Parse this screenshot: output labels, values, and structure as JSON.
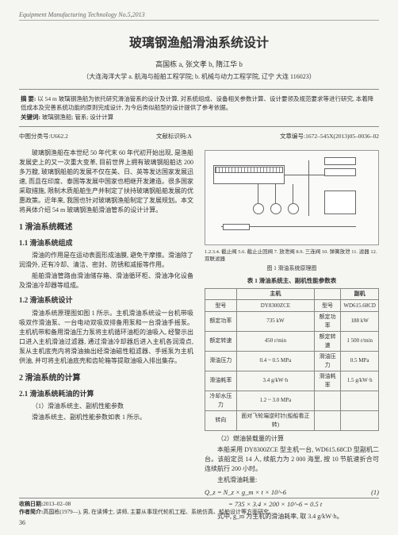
{
  "journal_header": "Equipment  Manufacturing Technology No.5,2013",
  "title": "玻璃钢渔船滑油系统设计",
  "authors": "高国栋 a, 张文孝 b, 隋江华 b",
  "affiliation": "（大连海洋大学  a. 航海与船舶工程学院;  b. 机械与动力工程学院, 辽宁  大连  116023）",
  "abstract_label": "摘 要:",
  "abstract_text": "以 54 m 玻璃钢渔船为依托研究滑油管系的设计及计算, 对系统组成、设备相关参数计算、设计要领及规范要求等进行研究, 本着降低成本及完善系统功能的原则完成设计, 为今后类似船型的设计提供了参考依据。",
  "keywords_label": "关键词:",
  "keywords_text": "玻璃钢渔船; 管系; 设计计算",
  "clc_label": "中图分类号:",
  "clc_value": "U662.2",
  "doc_code_label": "文献标识码:",
  "doc_code_value": "A",
  "article_id_label": "文章编号:",
  "article_id_value": "1672–545X(2013)05–0036–02",
  "intro_p1": "玻璃钢渔船在本世纪 50 年代末 60 年代初开始出现, 是渔船发展史上的又一次重大变革, 目前世界上拥有玻璃钢船舶达 200 多万艘, 玻璃钢船舶的发展不仅在美、日、英等发达国家发展迅速, 而且在印度、泰国等发展中国家也相继开发建造。很多国家采取措施, 限制木质船舶生产并制定了扶持玻璃钢船舶发展的优惠政策。近年来, 我国也针对玻璃钢渔船制定了发展规划。本文将具体介绍 54 m 玻璃钢渔船滑油管系的设计计算。",
  "s1": "1  滑油系统概述",
  "s11": "1.1  滑油系统组成",
  "p11a": "滑油的作用是在运动表面形成油膜, 避免干摩擦。滑油除了润滑外, 还有冷却、清洁、密封、防锈和减振等作用。",
  "p11b": "船舶滑油管路由滑油储存箱、滑油循环柜、滑油净化设备及滑油冷却器等组成。",
  "s12": "1.2  滑油系统设计",
  "p12": "滑油系统原理图如图 1 所示。主机滑油系统设一台机带吸吸双作滑油泵、一台电动双吸双排备用泵和一台滑油手摇泵。主机机带和备用滑油压力泵将主机循环油柜的油吸入, 经警示出口进入主机滑油过滤器, 通过滑油冷却器后进入主机各润滑点, 泵从主机底壳内将滑油抽出经滑油磁性粗滤器、手摇泵为主机供油, 并可将主机油底壳和齿轮箱等提取油吸入排出集存。",
  "s2": "2  滑油系统的计算",
  "s21": "2.1  滑油系统耗油的计算",
  "p21a": "（1）滑油系统主、副机性能参数",
  "p21b": "滑油系统主、副机性能参数如表 1 所示。",
  "fig_legend": "1.2.3.4. 截止阀  5.6. 截止止回阀  7. 放泄阀  8.9. 三连阀  10. 弹簧放泄  11. 滤器  12. 双联滤器",
  "fig_caption": "图 1  滑油系统原理图",
  "tbl_title": "表 1  滑油系统主、副机性能参数表",
  "table": {
    "columns": [
      "",
      "主机",
      "副机"
    ],
    "rows": [
      [
        "型号",
        "DY8300ZCE",
        "型号",
        "WD615.68CD"
      ],
      [
        "额定功率",
        "735 kW",
        "额定功率",
        "188 kW"
      ],
      [
        "额定转速",
        "450 r/min",
        "额定转速",
        "1 500 r/min"
      ],
      [
        "滑油压力",
        "0.4 ~ 0.5 MPa",
        "滑油压力",
        "0.5 MPa"
      ],
      [
        "滑油耗率",
        "3.4 g/kW·h",
        "滑油耗率",
        "1.5 g/kW·h"
      ],
      [
        "冷却水压力",
        "1.2 ~ 3.0 MPa",
        "",
        ""
      ],
      [
        "转向",
        "面对飞轮端逆时针(船船看正转)",
        "",
        ""
      ]
    ]
  },
  "p22a": "（2）燃油装载量的计算",
  "p22b": "本船采用 DY8300ZCE 型主机一台, WD615.68CD 型副机二台。该船定员 14 人, 续航力为 2 000 海里, 按 10 节航速折合可 连续航行 200 小时。",
  "p22c": "主机滑油耗量:",
  "eq1_lhs": "Q_z = N_z × g_m × t × 10^-6",
  "eq1_num": "(1)",
  "eq2": "= 735 × 3.4 × 200 × 10^-6 = 0.5 t",
  "eq_note": "式中, g_m 为主机的滑油耗率, 取 3.4 g/kW·h。",
  "footer_date_label": "收稿日期:",
  "footer_date": "2013–02–08",
  "footer_author_label": "作者简介:",
  "footer_author": "高国栋(1979—), 男, 在读博士, 讲师, 主要从事现代轮机工程、系统仿真、船舶设计等方面研究。",
  "page_number": "36"
}
